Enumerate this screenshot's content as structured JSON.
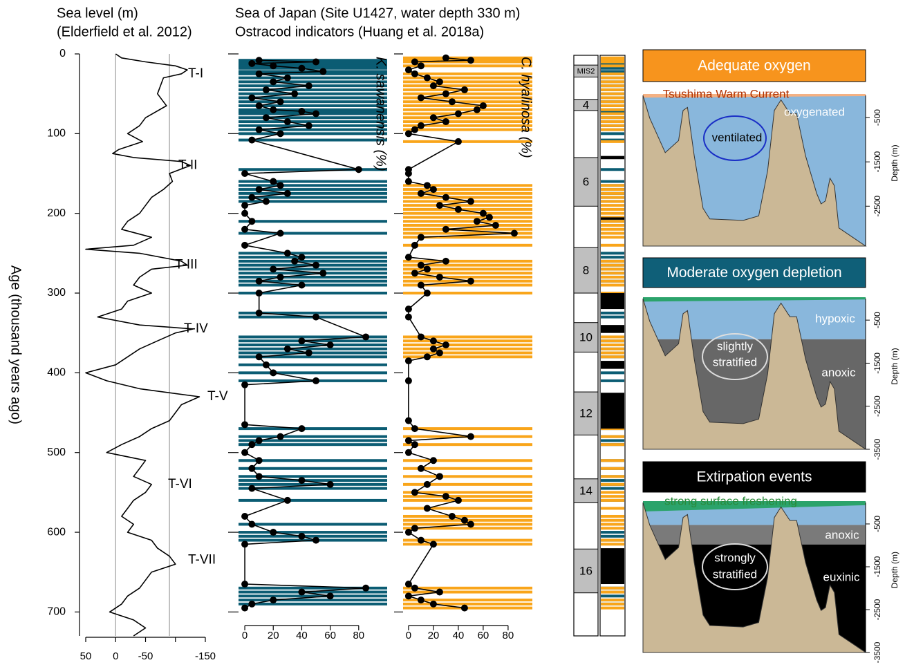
{
  "header": {
    "title": "Sea of Japan (Site U1427, water depth 330 m)",
    "subtitle": "Ostracod indicators (Huang et al. 2018a)"
  },
  "chart_data": [
    {
      "type": "line",
      "orientation": "vertical",
      "title": "Sea level (m)",
      "subtitle": "(Elderfield et al. 2012)",
      "xlabel": "Age (thousand years ago)",
      "color": "#000000",
      "xlim": [
        0,
        730
      ],
      "xticks": [
        0,
        100,
        200,
        300,
        400,
        500,
        600,
        700
      ],
      "ylim": [
        50,
        -150
      ],
      "yticks": [
        50,
        0,
        -50,
        {
          "value": -100,
          "label": null
        },
        -150
      ],
      "reference_lines": [
        0,
        -90
      ],
      "reference_color": "#b0b0b0",
      "x": [
        0,
        5,
        10,
        15,
        20,
        25,
        30,
        40,
        50,
        60,
        65,
        80,
        90,
        100,
        110,
        120,
        125,
        130,
        135,
        140,
        150,
        160,
        170,
        180,
        190,
        200,
        210,
        220,
        230,
        240,
        245,
        250,
        260,
        265,
        270,
        280,
        290,
        300,
        310,
        320,
        330,
        340,
        345,
        350,
        360,
        370,
        380,
        390,
        400,
        410,
        420,
        430,
        440,
        450,
        460,
        470,
        480,
        490,
        500,
        510,
        520,
        530,
        540,
        550,
        560,
        570,
        580,
        590,
        600,
        610,
        620,
        630,
        640,
        650,
        660,
        670,
        680,
        690,
        700,
        710,
        720,
        730
      ],
      "values": [
        0,
        -10,
        -50,
        -100,
        -120,
        -110,
        -80,
        -75,
        -70,
        -80,
        -85,
        -50,
        -40,
        -20,
        -45,
        -5,
        5,
        -30,
        -110,
        -125,
        -90,
        -95,
        -80,
        -60,
        -50,
        -40,
        -20,
        -10,
        -60,
        -30,
        50,
        -40,
        -110,
        -120,
        -60,
        -40,
        -30,
        -60,
        -20,
        -10,
        30,
        -40,
        -130,
        -100,
        -70,
        -40,
        -20,
        0,
        50,
        15,
        -40,
        -140,
        -110,
        -100,
        -90,
        -60,
        -40,
        -10,
        15,
        -50,
        -40,
        -30,
        -60,
        -50,
        -30,
        -20,
        -10,
        -30,
        -20,
        -60,
        -70,
        -90,
        -100,
        -60,
        -50,
        -40,
        -20,
        -10,
        10,
        -30,
        -50,
        -30
      ],
      "annotations": [
        {
          "text": "T-I",
          "x": 25
        },
        {
          "text": "T-II",
          "x": 140
        },
        {
          "text": "T-III",
          "x": 265
        },
        {
          "text": "T-IV",
          "x": 345
        },
        {
          "text": "T-V",
          "x": 430
        },
        {
          "text": "T-VI",
          "x": 540
        },
        {
          "text": "T-VII",
          "x": 635
        }
      ]
    },
    {
      "type": "line",
      "orientation": "vertical",
      "ylabel": "K. sawanensis (%)",
      "color": "#000000",
      "markers": true,
      "bands": true,
      "band_color": "#0b5c73",
      "xlim": [
        0,
        730
      ],
      "ylim": [
        -4.4,
        100
      ],
      "yticks": [
        0,
        20,
        40,
        60,
        80
      ],
      "x": [
        8,
        10,
        12,
        15,
        18,
        22,
        25,
        30,
        35,
        40,
        45,
        50,
        55,
        60,
        65,
        70,
        72,
        75,
        80,
        85,
        90,
        95,
        100,
        108,
        145,
        150,
        160,
        165,
        170,
        175,
        180,
        185,
        190,
        200,
        210,
        220,
        225,
        240,
        250,
        255,
        260,
        265,
        270,
        275,
        280,
        285,
        290,
        300,
        325,
        330,
        355,
        360,
        365,
        370,
        375,
        380,
        390,
        400,
        410,
        415,
        465,
        470,
        480,
        485,
        490,
        500,
        510,
        520,
        530,
        535,
        540,
        545,
        560,
        580,
        590,
        600,
        605,
        610,
        615,
        665,
        670,
        675,
        680,
        685,
        690,
        695
      ],
      "values": [
        10,
        50,
        5,
        20,
        40,
        55,
        10,
        30,
        20,
        45,
        15,
        35,
        5,
        25,
        10,
        20,
        40,
        50,
        15,
        30,
        45,
        10,
        25,
        5,
        80,
        0,
        20,
        25,
        10,
        30,
        5,
        15,
        0,
        0,
        5,
        0,
        25,
        0,
        30,
        40,
        35,
        50,
        20,
        55,
        25,
        10,
        40,
        10,
        10,
        50,
        85,
        40,
        60,
        30,
        45,
        10,
        15,
        20,
        50,
        0,
        0,
        40,
        25,
        10,
        5,
        0,
        10,
        5,
        10,
        40,
        60,
        5,
        30,
        0,
        5,
        20,
        40,
        50,
        0,
        0,
        85,
        40,
        60,
        20,
        5,
        0
      ]
    },
    {
      "type": "line",
      "orientation": "vertical",
      "ylabel": "C. hyalinosa (%)",
      "color": "#000000",
      "markers": true,
      "bands": true,
      "band_color": "#f9a51a",
      "xlim": [
        0,
        730
      ],
      "ylim": [
        -4.4,
        99.5
      ],
      "yticks": [
        0,
        20,
        40,
        60,
        80
      ],
      "x": [
        5,
        8,
        10,
        15,
        20,
        25,
        30,
        35,
        40,
        45,
        50,
        55,
        60,
        65,
        70,
        75,
        80,
        85,
        90,
        95,
        100,
        110,
        145,
        150,
        160,
        165,
        170,
        175,
        180,
        185,
        190,
        195,
        200,
        205,
        210,
        215,
        220,
        225,
        230,
        240,
        255,
        260,
        265,
        270,
        275,
        280,
        285,
        290,
        300,
        320,
        330,
        355,
        360,
        365,
        370,
        375,
        380,
        385,
        410,
        460,
        470,
        480,
        485,
        490,
        500,
        510,
        520,
        530,
        540,
        550,
        555,
        560,
        570,
        580,
        585,
        590,
        595,
        600,
        610,
        615,
        665,
        670,
        675,
        680,
        685,
        690,
        695
      ],
      "values": [
        30,
        50,
        5,
        10,
        0,
        5,
        15,
        25,
        20,
        45,
        30,
        10,
        35,
        60,
        55,
        40,
        20,
        30,
        10,
        5,
        0,
        40,
        0,
        0,
        0,
        15,
        20,
        10,
        30,
        50,
        25,
        40,
        60,
        65,
        55,
        70,
        30,
        85,
        10,
        5,
        0,
        30,
        10,
        15,
        5,
        25,
        50,
        10,
        15,
        0,
        0,
        10,
        20,
        30,
        20,
        25,
        15,
        0,
        0,
        0,
        5,
        50,
        0,
        5,
        0,
        20,
        10,
        25,
        15,
        5,
        30,
        40,
        15,
        35,
        45,
        50,
        5,
        0,
        10,
        20,
        0,
        5,
        25,
        0,
        10,
        20,
        45
      ]
    },
    {
      "type": "stage-column",
      "xlim": [
        0,
        730
      ],
      "stages": [
        {
          "label": "MIS2",
          "start": 14,
          "end": 29
        },
        {
          "label": "4",
          "start": 57,
          "end": 71
        },
        {
          "label": "6",
          "start": 130,
          "end": 191
        },
        {
          "label": "8",
          "start": 243,
          "end": 300
        },
        {
          "label": "10",
          "start": 337,
          "end": 374
        },
        {
          "label": "12",
          "start": 424,
          "end": 478
        },
        {
          "label": "14",
          "start": 533,
          "end": 563
        },
        {
          "label": "16",
          "start": 621,
          "end": 676
        }
      ]
    },
    {
      "type": "indicator-column",
      "xlim": [
        0,
        730
      ],
      "color": "#000000",
      "intervals": [
        [
          128,
          132
        ],
        [
          205,
          208
        ],
        [
          300,
          320
        ],
        [
          340,
          350
        ],
        [
          385,
          395
        ],
        [
          425,
          470
        ],
        [
          620,
          665
        ]
      ]
    }
  ],
  "diagrams": [
    {
      "title": "Adequate oxygen",
      "color": "#f7941d",
      "depth_label": "Depth (m)",
      "ylim": [
        0,
        -3400
      ],
      "yticks": [
        -500,
        -1500,
        -2500
      ],
      "labels": [
        "Tsushima Warm Current",
        "oxygenated",
        "ventilated"
      ]
    },
    {
      "title": "Moderate oxygen depletion",
      "color": "#0f5f78",
      "depth_label": "Depth (m)",
      "ylim": [
        0,
        -3500
      ],
      "yticks": [
        -500,
        -1500,
        -2500,
        -3500
      ],
      "labels": [
        "hypoxic",
        "slightly",
        "stratified",
        "anoxic"
      ]
    },
    {
      "title": "Extirpation events",
      "color": "#000000",
      "depth_label": "Depth (m)",
      "ylim": [
        0,
        -3500
      ],
      "yticks": [
        -500,
        -1500,
        -2500,
        -3500
      ],
      "labels": [
        "strong surface freshening",
        "anoxic",
        "strongly",
        "stratified",
        "euxinic"
      ]
    }
  ]
}
